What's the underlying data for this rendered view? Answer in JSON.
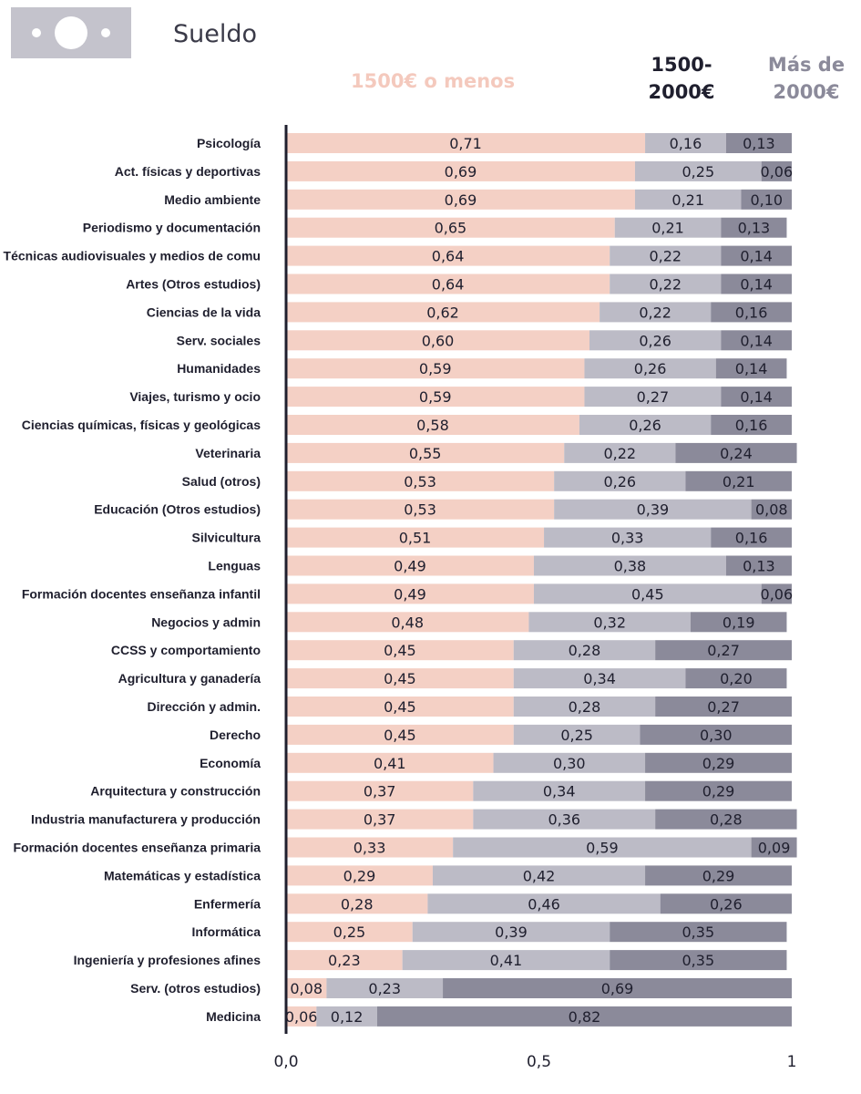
{
  "header": {
    "icon": "banknote-icon",
    "title": "Sueldo"
  },
  "legend": {
    "low": "1500€ o menos",
    "mid_line1": "1500-",
    "mid_line2": "2000€",
    "high_line1": "Más de",
    "high_line2": "2000€"
  },
  "colors": {
    "low": "#f4d0c5",
    "mid": "#bcbbc6",
    "high": "#8b8a9a",
    "axis": "#1f1f2e",
    "icon": "#c4c3cc"
  },
  "chart_data": {
    "type": "bar",
    "orientation": "horizontal",
    "stacked": true,
    "categories": [
      "Psicología",
      "Act. físicas y deportivas",
      "Medio ambiente",
      "Periodismo y documentación",
      "Técnicas audiovisuales y medios de comu",
      "Artes (Otros estudios)",
      "Ciencias de la vida",
      "Serv. sociales",
      "Humanidades",
      "Viajes, turismo y ocio",
      "Ciencias químicas, físicas y geológicas",
      "Veterinaria",
      "Salud (otros)",
      "Educación (Otros estudios)",
      "Silvicultura",
      "Lenguas",
      "Formación docentes enseñanza infantil",
      "Negocios y admin",
      "CCSS y comportamiento",
      "Agricultura y ganadería",
      "Dirección y admin.",
      "Derecho",
      "Economía",
      "Arquitectura y construcción",
      "Industria manufacturera y producción",
      "Formación docentes enseñanza primaria",
      "Matemáticas y estadística",
      "Enfermería",
      "Informática",
      "Ingeniería y profesiones afines",
      "Serv. (otros estudios)",
      "Medicina"
    ],
    "series": [
      {
        "name": "1500€ o menos",
        "values": [
          0.71,
          0.69,
          0.69,
          0.65,
          0.64,
          0.64,
          0.62,
          0.6,
          0.59,
          0.59,
          0.58,
          0.55,
          0.53,
          0.53,
          0.51,
          0.49,
          0.49,
          0.48,
          0.45,
          0.45,
          0.45,
          0.45,
          0.41,
          0.37,
          0.37,
          0.33,
          0.29,
          0.28,
          0.25,
          0.23,
          0.08,
          0.06
        ],
        "labels": [
          "0,71",
          "0,69",
          "0,69",
          "0,65",
          "0,64",
          "0,64",
          "0,62",
          "0,60",
          "0,59",
          "0,59",
          "0,58",
          "0,55",
          "0,53",
          "0,53",
          "0,51",
          "0,49",
          "0,49",
          "0,48",
          "0,45",
          "0,45",
          "0,45",
          "0,45",
          "0,41",
          "0,37",
          "0,37",
          "0,33",
          "0,29",
          "0,28",
          "0,25",
          "0,23",
          "0,08",
          "0,06"
        ]
      },
      {
        "name": "1500-2000€",
        "values": [
          0.16,
          0.25,
          0.21,
          0.21,
          0.22,
          0.22,
          0.22,
          0.26,
          0.26,
          0.27,
          0.26,
          0.22,
          0.26,
          0.39,
          0.33,
          0.38,
          0.45,
          0.32,
          0.28,
          0.34,
          0.28,
          0.25,
          0.3,
          0.34,
          0.36,
          0.59,
          0.42,
          0.46,
          0.39,
          0.41,
          0.23,
          0.12
        ],
        "labels": [
          "0,16",
          "0,25",
          "0,21",
          "0,21",
          "0,22",
          "0,22",
          "0,22",
          "0,26",
          "0,26",
          "0,27",
          "0,26",
          "0,22",
          "0,26",
          "0,39",
          "0,33",
          "0,38",
          "0,45",
          "0,32",
          "0,28",
          "0,34",
          "0,28",
          "0,25",
          "0,30",
          "0,34",
          "0,36",
          "0,59",
          "0,42",
          "0,46",
          "0,39",
          "0,41",
          "0,23",
          "0,12"
        ]
      },
      {
        "name": "Más de 2000€",
        "values": [
          0.13,
          0.06,
          0.1,
          0.13,
          0.14,
          0.14,
          0.16,
          0.14,
          0.14,
          0.14,
          0.16,
          0.24,
          0.21,
          0.08,
          0.16,
          0.13,
          0.06,
          0.19,
          0.27,
          0.2,
          0.27,
          0.3,
          0.29,
          0.29,
          0.28,
          0.09,
          0.29,
          0.26,
          0.35,
          0.35,
          0.69,
          0.82
        ],
        "labels": [
          "0,13",
          "0,06",
          "0,10",
          "0,13",
          "0,14",
          "0,14",
          "0,16",
          "0,14",
          "0,14",
          "0,14",
          "0,16",
          "0,24",
          "0,21",
          "0,08",
          "0,16",
          "0,13",
          "0,06",
          "0,19",
          "0,27",
          "0,20",
          "0,27",
          "0,30",
          "0,29",
          "0,29",
          "0,28",
          "0,09",
          "0,29",
          "0,26",
          "0,35",
          "0,35",
          "0,69",
          "0,82"
        ]
      }
    ],
    "xlim": [
      0,
      1
    ],
    "xticks": [
      "0,0",
      "0,5",
      "1"
    ],
    "xtick_values": [
      0,
      0.5,
      1
    ],
    "grid": false,
    "legend_position": "top"
  }
}
